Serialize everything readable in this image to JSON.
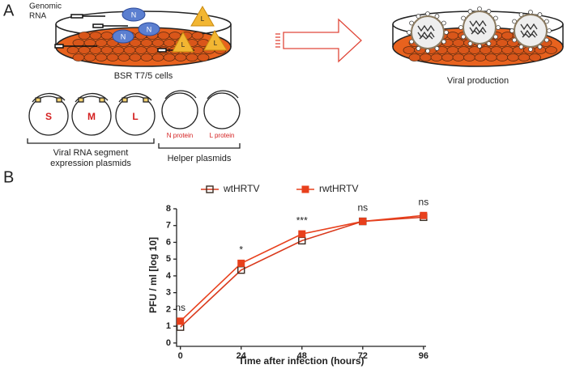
{
  "panel_a": {
    "label": "A",
    "genomic_rna": [
      "Genomic",
      "RNA"
    ],
    "n_labels": [
      "N",
      "N",
      "N"
    ],
    "l_labels": [
      "L",
      "L",
      "L"
    ],
    "cells": "BSR T7/5 cells",
    "plasmids": [
      "S",
      "M",
      "L"
    ],
    "helpers": [
      "N protein",
      "L protein"
    ],
    "segment_group": [
      "Viral RNA segment",
      "expression plasmids"
    ],
    "helper_group": "Helper plasmids",
    "result": "Viral production"
  },
  "chart_data": {
    "type": "line",
    "panel_label": "B",
    "xlabel": "Time after infection (hours)",
    "ylabel": "PFU / ml [log 10]",
    "x": [
      0,
      24,
      48,
      72,
      96
    ],
    "series": [
      {
        "name": "wtHRTV",
        "color": "#d9391c",
        "marker": "open",
        "values": [
          0.95,
          4.35,
          6.1,
          7.25,
          7.5
        ]
      },
      {
        "name": "rwtHRTV",
        "color": "#e8401c",
        "marker": "filled",
        "values": [
          1.3,
          4.75,
          6.5,
          7.25,
          7.6
        ]
      }
    ],
    "significance": [
      "ns",
      "*",
      "***",
      "ns",
      "ns"
    ],
    "xlim": [
      -1.5,
      97
    ],
    "ylim": [
      -0.2,
      8
    ],
    "xticks": [
      0,
      24,
      48,
      72,
      96
    ],
    "yticks": [
      0,
      1,
      2,
      3,
      4,
      5,
      6,
      7,
      8
    ],
    "legend": "top"
  }
}
